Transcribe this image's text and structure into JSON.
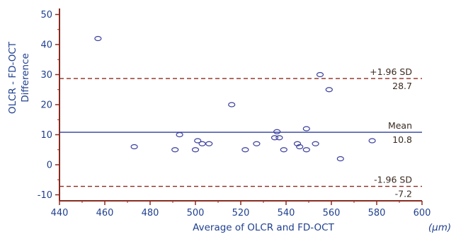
{
  "chart_data": {
    "type": "scatter",
    "title": "",
    "xlabel": "Average of OLCR and FD-OCT",
    "x_unit": "(μm)",
    "ylabel_line1": "OLCR - FD-OCT",
    "ylabel_line2": "Difference",
    "xlim": [
      440,
      600
    ],
    "ylim": [
      -12,
      52
    ],
    "xticks": [
      440,
      460,
      480,
      500,
      520,
      540,
      560,
      580,
      600
    ],
    "yticks": [
      -10,
      0,
      10,
      20,
      30,
      40,
      50
    ],
    "grid": false,
    "reference_lines": [
      {
        "name": "upper-loa",
        "label": "+1.96 SD",
        "value_label": "28.7",
        "y": 28.7,
        "style": "dashed",
        "color": "#8b2a1f"
      },
      {
        "name": "mean",
        "label": "Mean",
        "value_label": "10.8",
        "y": 10.8,
        "style": "solid",
        "color": "#2b3f9c"
      },
      {
        "name": "lower-loa",
        "label": "-1.96 SD",
        "value_label": "-7.2",
        "y": -7.2,
        "style": "dashed",
        "color": "#8b2a1f"
      }
    ],
    "points": [
      {
        "x": 457,
        "y": 42
      },
      {
        "x": 473,
        "y": 6
      },
      {
        "x": 491,
        "y": 5
      },
      {
        "x": 493,
        "y": 10
      },
      {
        "x": 500,
        "y": 5
      },
      {
        "x": 501,
        "y": 8
      },
      {
        "x": 503,
        "y": 7
      },
      {
        "x": 506,
        "y": 7
      },
      {
        "x": 516,
        "y": 20
      },
      {
        "x": 522,
        "y": 5
      },
      {
        "x": 527,
        "y": 7
      },
      {
        "x": 535,
        "y": 9
      },
      {
        "x": 536,
        "y": 11
      },
      {
        "x": 537,
        "y": 9
      },
      {
        "x": 539,
        "y": 5
      },
      {
        "x": 545,
        "y": 7
      },
      {
        "x": 546,
        "y": 6
      },
      {
        "x": 549,
        "y": 12
      },
      {
        "x": 549,
        "y": 5
      },
      {
        "x": 553,
        "y": 7
      },
      {
        "x": 555,
        "y": 30
      },
      {
        "x": 559,
        "y": 25
      },
      {
        "x": 564,
        "y": 2
      },
      {
        "x": 578,
        "y": 8
      }
    ],
    "colors": {
      "axis": "#8b2a1f",
      "tick_text": "#1f3f8f",
      "point_stroke": "#3a3f9c",
      "mean_line": "#2b3f9c",
      "loa_line": "#8b2a1f"
    }
  }
}
